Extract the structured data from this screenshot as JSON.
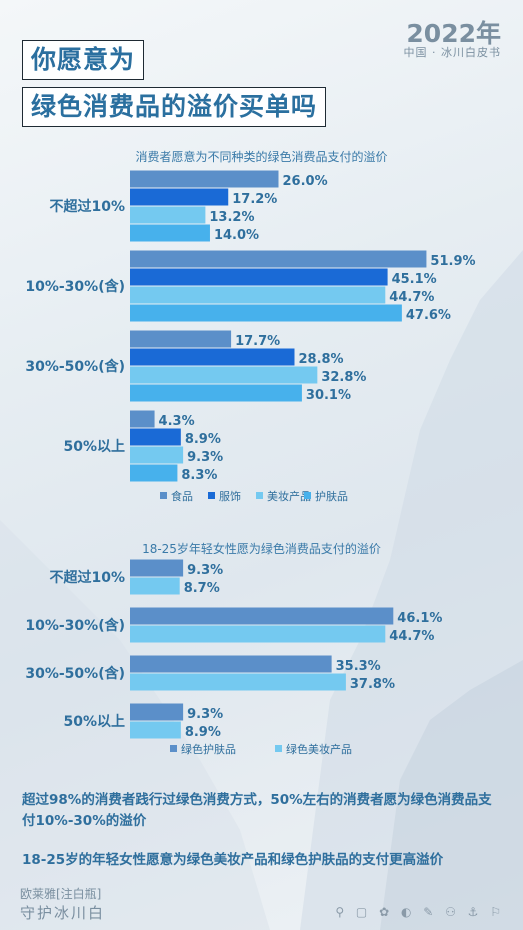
{
  "header": {
    "year": "2022年",
    "subtitle": "中国 · 冰川白皮书",
    "title_line1": "你愿意为",
    "title_line2": "绿色消费品的溢价买单吗"
  },
  "chart_data": [
    {
      "type": "bar",
      "orientation": "horizontal",
      "title": "消费者愿意为不同种类的绿色消费品支付的溢价",
      "categories": [
        "不超过10%",
        "10%-30%(含)",
        "30%-50%(含)",
        "50%以上"
      ],
      "series": [
        {
          "name": "食品",
          "color": "#5b8fc9",
          "values": [
            26.0,
            51.9,
            17.7,
            4.3
          ]
        },
        {
          "name": "服饰",
          "color": "#1a6ad6",
          "values": [
            17.2,
            45.1,
            28.8,
            8.9
          ]
        },
        {
          "name": "美妆产品",
          "color": "#74c9f0",
          "values": [
            13.2,
            44.7,
            32.8,
            9.3
          ]
        },
        {
          "name": "护肤品",
          "color": "#47b1ec",
          "values": [
            14.0,
            47.6,
            30.1,
            8.3
          ]
        }
      ],
      "value_format": "percent_1dp",
      "legend_position": "bottom",
      "grid": false
    },
    {
      "type": "bar",
      "orientation": "horizontal",
      "title": "18-25岁年轻女性愿为绿色消费品支付的溢价",
      "categories": [
        "不超过10%",
        "10%-30%(含)",
        "30%-50%(含)",
        "50%以上"
      ],
      "series": [
        {
          "name": "绿色护肤品",
          "color": "#5b8fc9",
          "values": [
            9.3,
            46.1,
            35.3,
            9.3
          ]
        },
        {
          "name": "绿色美妆产品",
          "color": "#74c9f0",
          "values": [
            8.7,
            44.7,
            37.8,
            8.9
          ]
        }
      ],
      "value_format": "percent_1dp",
      "legend_position": "bottom",
      "grid": false
    }
  ],
  "notes": {
    "line1": "超过98%的消费者践行过绿色消费方式，50%左右的消费者愿为绿色消费品支付10%-30%的溢价",
    "line2": "18-25岁的年轻女性愿意为绿色美妆产品和绿色护肤品的支付更高溢价"
  },
  "footer": {
    "brand_line1": "欧莱雅[注白瓶]",
    "brand_line2": "守护冰川白",
    "icons": "⚲ ▢ ✿ ◐ ✎ ⚇ ⚓ ⚐"
  }
}
